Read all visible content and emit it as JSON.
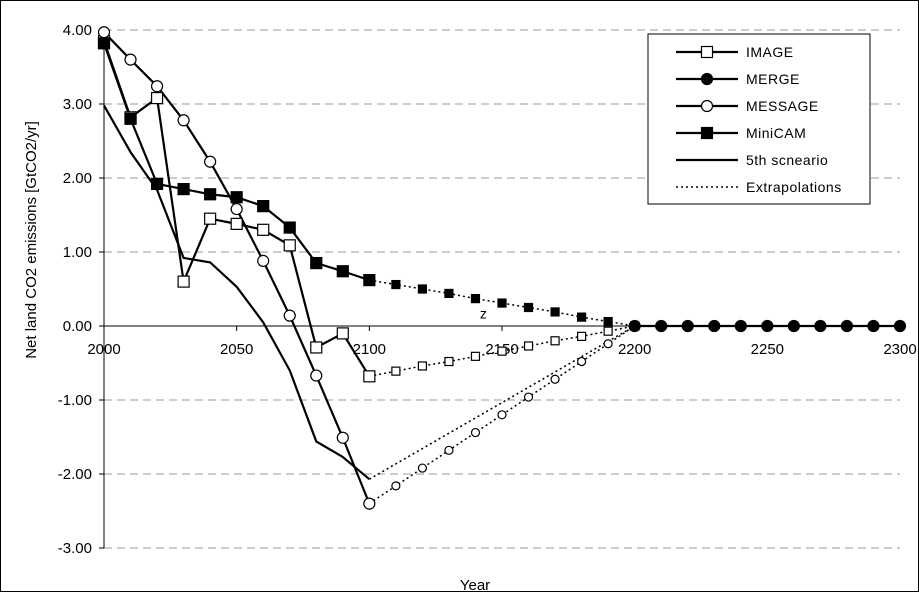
{
  "chart_data": {
    "type": "line",
    "title": "",
    "xlabel": "Year",
    "ylabel": "Net land CO2 emissions [GtCO2/yr]",
    "xlim": [
      2000,
      2300
    ],
    "ylim": [
      -3.0,
      4.0
    ],
    "x_ticks": [
      2000,
      2050,
      2100,
      2150,
      2200,
      2250,
      2300
    ],
    "x_tick_labels": [
      "2000",
      "2050",
      "2100",
      "2150",
      "2200",
      "2250",
      "2300"
    ],
    "y_ticks": [
      4.0,
      3.0,
      2.0,
      1.0,
      0.0,
      -1.0,
      -2.0,
      -3.0
    ],
    "y_tick_labels": [
      "4.00",
      "3.00",
      "2.00",
      "1.00",
      "0.00",
      "-1.00",
      "-2.00",
      "-3.00"
    ],
    "grid": "horizontal dashed",
    "legend_position": "top-right",
    "annotations": [
      {
        "text": "z",
        "x": 2143,
        "y": 0.1
      }
    ],
    "series": [
      {
        "name": "IMAGE",
        "marker": "open-square",
        "style": "solid",
        "x": [
          2000,
          2010,
          2020,
          2030,
          2040,
          2050,
          2060,
          2070,
          2080,
          2090,
          2100
        ],
        "y": [
          3.85,
          2.82,
          3.08,
          0.6,
          1.45,
          1.38,
          1.3,
          1.09,
          -0.29,
          -0.1,
          -0.68
        ]
      },
      {
        "name": "MERGE",
        "marker": "filled-circle",
        "style": "solid",
        "x": [
          2200,
          2210,
          2220,
          2230,
          2240,
          2250,
          2260,
          2270,
          2280,
          2290,
          2300
        ],
        "y": [
          0,
          0,
          0,
          0,
          0,
          0,
          0,
          0,
          0,
          0,
          0
        ]
      },
      {
        "name": "MESSAGE",
        "marker": "open-circle",
        "style": "solid",
        "x": [
          2000,
          2010,
          2020,
          2030,
          2040,
          2050,
          2060,
          2070,
          2080,
          2090,
          2100
        ],
        "y": [
          3.97,
          3.6,
          3.24,
          2.78,
          2.22,
          1.58,
          0.88,
          0.14,
          -0.67,
          -1.51,
          -2.4
        ]
      },
      {
        "name": "MiniCAM",
        "marker": "filled-square",
        "style": "solid",
        "x": [
          2000,
          2010,
          2020,
          2030,
          2040,
          2050,
          2060,
          2070,
          2080,
          2090,
          2100
        ],
        "y": [
          3.82,
          2.8,
          1.92,
          1.85,
          1.78,
          1.74,
          1.62,
          1.33,
          0.85,
          0.74,
          0.62
        ]
      },
      {
        "name": "5th scneario",
        "marker": "none",
        "style": "solid",
        "x": [
          2000,
          2010,
          2020,
          2030,
          2040,
          2050,
          2060,
          2070,
          2080,
          2090,
          2100
        ],
        "y": [
          2.98,
          2.35,
          1.84,
          0.92,
          0.86,
          0.53,
          0.05,
          -0.6,
          -1.56,
          -1.77,
          -2.07
        ]
      },
      {
        "name": "Extrapolations",
        "marker": "none",
        "style": "dotted",
        "x": [],
        "y": []
      }
    ],
    "extrapolations": [
      {
        "of": "MiniCAM",
        "marker": "filled-square",
        "x": [
          2100,
          2110,
          2120,
          2130,
          2140,
          2150,
          2160,
          2170,
          2180,
          2190,
          2200
        ],
        "y": [
          0.62,
          0.56,
          0.5,
          0.44,
          0.37,
          0.31,
          0.25,
          0.19,
          0.12,
          0.06,
          0.0
        ]
      },
      {
        "of": "IMAGE",
        "marker": "open-square",
        "x": [
          2100,
          2110,
          2120,
          2130,
          2140,
          2150,
          2160,
          2170,
          2180,
          2190,
          2200
        ],
        "y": [
          -0.68,
          -0.61,
          -0.54,
          -0.48,
          -0.41,
          -0.34,
          -0.27,
          -0.2,
          -0.14,
          -0.07,
          0.0
        ]
      },
      {
        "of": "MESSAGE",
        "marker": "open-circle",
        "x": [
          2100,
          2110,
          2120,
          2130,
          2140,
          2150,
          2160,
          2170,
          2180,
          2190,
          2200
        ],
        "y": [
          -2.4,
          -2.16,
          -1.92,
          -1.68,
          -1.44,
          -1.2,
          -0.96,
          -0.72,
          -0.48,
          -0.24,
          0.0
        ]
      },
      {
        "of": "5th scneario",
        "marker": "none",
        "x": [
          2100,
          2200
        ],
        "y": [
          -2.07,
          0.0
        ]
      }
    ]
  }
}
